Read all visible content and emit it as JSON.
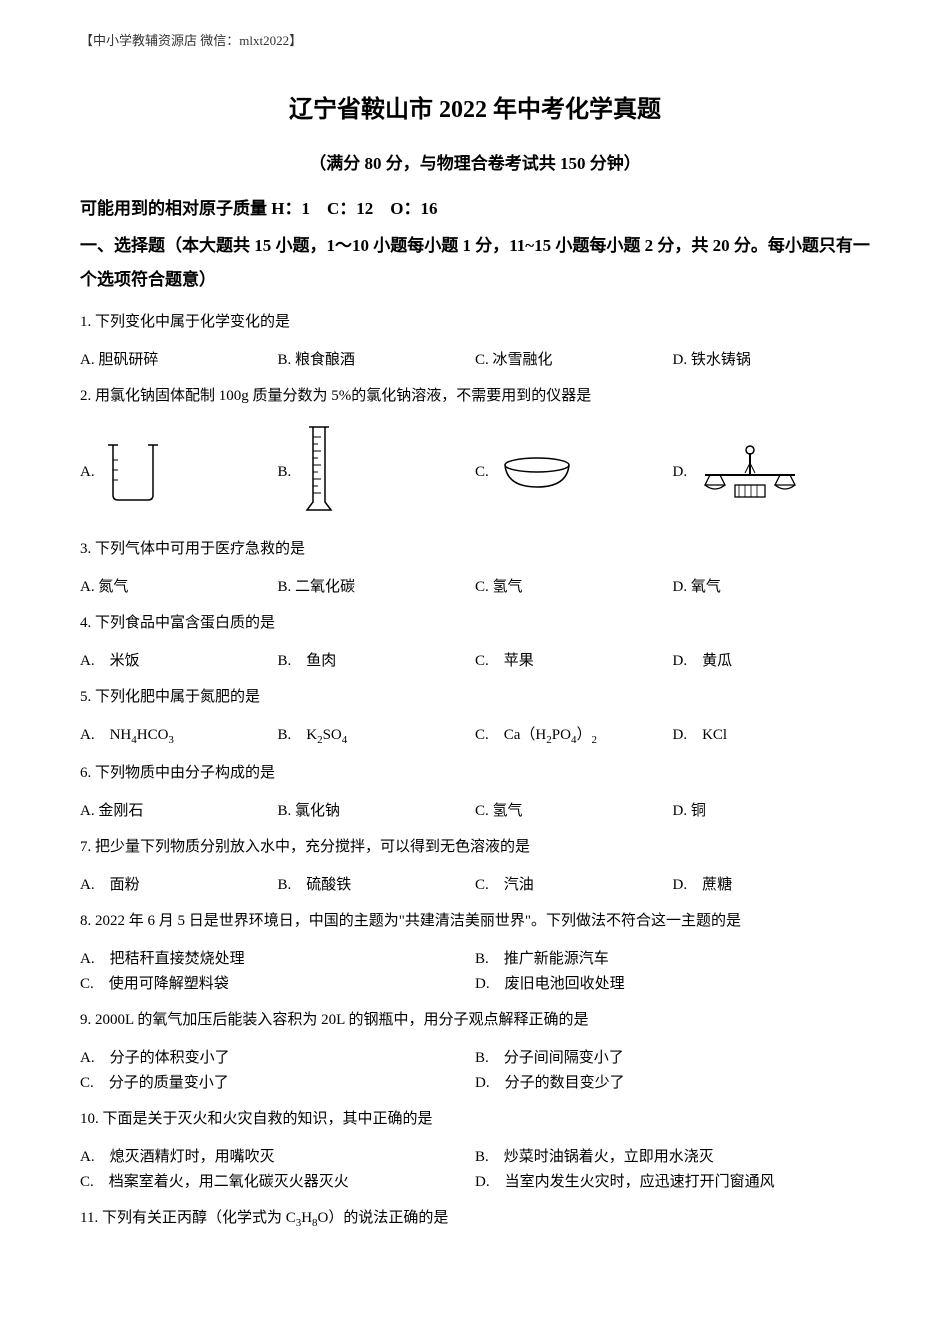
{
  "header_note": "【中小学教辅资源店 微信：mlxt2022】",
  "main_title": "辽宁省鞍山市 2022 年中考化学真题",
  "subtitle": "（满分 80 分，与物理合卷考试共 150 分钟）",
  "atomic_mass": "可能用到的相对原子质量 H：1　C：12　O：16",
  "section_title": "一、选择题（本大题共 15 小题，1～10 小题每小题 1 分，11~15 小题每小题 2 分，共 20 分。每小题只有一个选项符合题意）",
  "q1": {
    "text": "1. 下列变化中属于化学变化的是",
    "a": "A. 胆矾研碎",
    "b": "B. 粮食酿酒",
    "c": "C. 冰雪融化",
    "d": "D. 铁水铸锅"
  },
  "q2": {
    "text": "2. 用氯化钠固体配制 100g 质量分数为 5%的氯化钠溶液，不需要用到的仪器是",
    "a": "A.",
    "b": "B.",
    "c": "C.",
    "d": "D.",
    "icons": {
      "a_name": "beaker-icon",
      "b_name": "graduated-cylinder-icon",
      "c_name": "evaporating-dish-icon",
      "d_name": "balance-scale-icon"
    }
  },
  "q3": {
    "text": "3. 下列气体中可用于医疗急救的是",
    "a": "A. 氮气",
    "b": "B. 二氧化碳",
    "c": "C. 氢气",
    "d": "D. 氧气"
  },
  "q4": {
    "text": "4. 下列食品中富含蛋白质的是",
    "a": "A.　米饭",
    "b": "B.　鱼肉",
    "c": "C.　苹果",
    "d": "D.　黄瓜"
  },
  "q5": {
    "text": "5. 下列化肥中属于氮肥的是",
    "a_html": "A.　NH<sub>4</sub>HCO<sub>3</sub>",
    "b_html": "B.　K<sub>2</sub>SO<sub>4</sub>",
    "c_html": "C.　Ca（H<sub>2</sub>PO<sub>4</sub>）<sub>2</sub>",
    "d_html": "D.　KCl"
  },
  "q6": {
    "text": "6. 下列物质中由分子构成的是",
    "a": "A. 金刚石",
    "b": "B. 氯化钠",
    "c": "C. 氢气",
    "d": "D. 铜"
  },
  "q7": {
    "text": "7. 把少量下列物质分别放入水中，充分搅拌，可以得到无色溶液的是",
    "a": "A.　面粉",
    "b": "B.　硫酸铁",
    "c": "C.　汽油",
    "d": "D.　蔗糖"
  },
  "q8": {
    "text": "8. 2022 年 6 月 5 日是世界环境日，中国的主题为\"共建清洁美丽世界\"。下列做法不符合这一主题的是",
    "a": "A.　把秸秆直接焚烧处理",
    "b": "B.　推广新能源汽车",
    "c": "C.　使用可降解塑料袋",
    "d": "D.　废旧电池回收处理"
  },
  "q9": {
    "text": "9. 2000L 的氧气加压后能装入容积为 20L 的钢瓶中，用分子观点解释正确的是",
    "a": "A.　分子的体积变小了",
    "b": "B.　分子间间隔变小了",
    "c": "C.　分子的质量变小了",
    "d": "D.　分子的数目变少了"
  },
  "q10": {
    "text": "10. 下面是关于灭火和火灾自救的知识，其中正确的是",
    "a": "A.　熄灭酒精灯时，用嘴吹灭",
    "b": "B.　炒菜时油锅着火，立即用水浇灭",
    "c": "C.　档案室着火，用二氧化碳灭火器灭火",
    "d": "D.　当室内发生火灾时，应迅速打开门窗通风"
  },
  "q11": {
    "text_html": "11. 下列有关正丙醇（化学式为 C<sub>3</sub>H<sub>8</sub>O）的说法正确的是"
  },
  "colors": {
    "text": "#000000",
    "background": "#ffffff",
    "stroke": "#000000"
  }
}
